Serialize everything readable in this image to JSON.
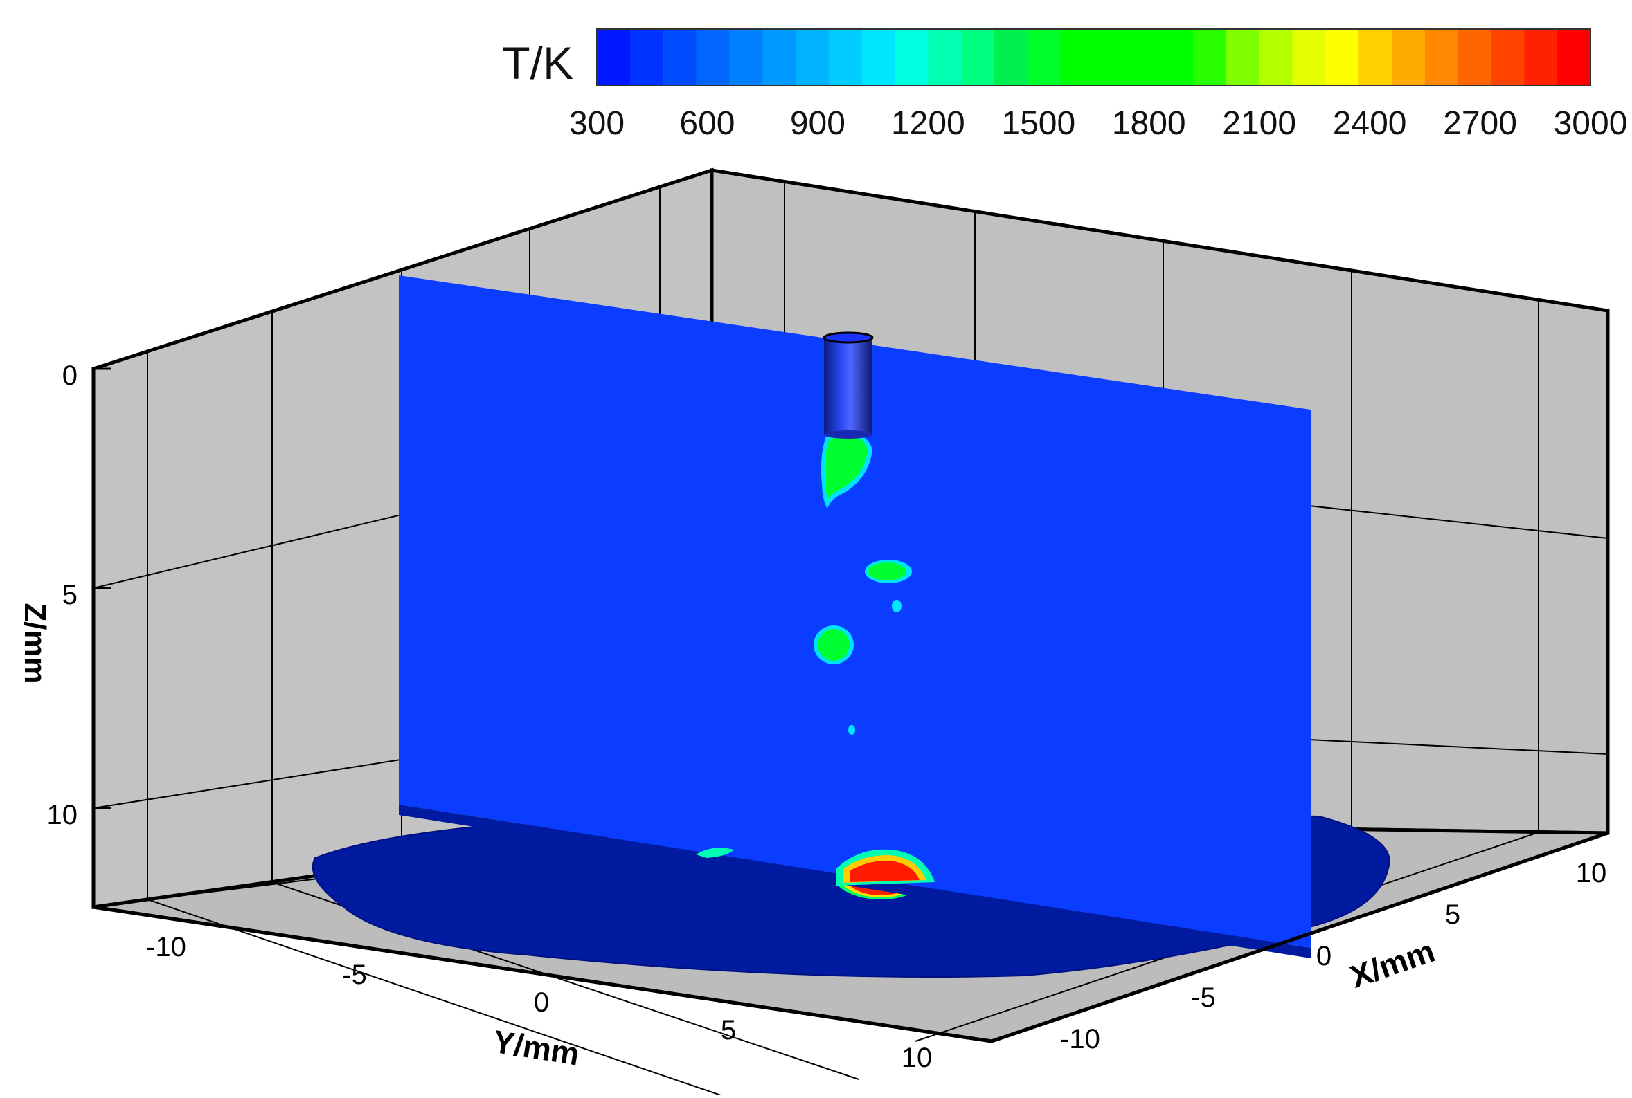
{
  "chart_data": {
    "type": "heatmap",
    "subtype": "3d-contour-slice",
    "title": "",
    "colorbar": {
      "label": "T/K",
      "min": 300,
      "max": 3000,
      "ticks": [
        300,
        600,
        900,
        1200,
        1500,
        1800,
        2100,
        2400,
        2700,
        3000
      ],
      "colors": [
        "#0018ff",
        "#0033ff",
        "#004dff",
        "#0066ff",
        "#0080ff",
        "#0099ff",
        "#00b3ff",
        "#00ccff",
        "#00e6ff",
        "#00ffe0",
        "#00ffb0",
        "#00ff80",
        "#00f050",
        "#00ff2a",
        "#00ff00",
        "#00ff00",
        "#00ff00",
        "#00ff00",
        "#2aff00",
        "#80ff00",
        "#b3ff00",
        "#e6ff00",
        "#ffff00",
        "#ffd000",
        "#ffaa00",
        "#ff8800",
        "#ff6600",
        "#ff4400",
        "#ff2200",
        "#ff0000"
      ]
    },
    "axes": {
      "x": {
        "label": "X/mm",
        "ticks": [
          "-10",
          "-5",
          "0",
          "5",
          "10"
        ],
        "range": [
          -12,
          12
        ]
      },
      "y": {
        "label": "Y/mm",
        "ticks": [
          "-10",
          "-5",
          "0",
          "5",
          "10"
        ],
        "range": [
          -12,
          12
        ]
      },
      "z": {
        "label": "Z/mm",
        "ticks": [
          "0",
          "5",
          "10"
        ],
        "range": [
          0,
          12
        ],
        "reversed": true
      }
    },
    "grid": true,
    "background_temperature_K": 300,
    "hot_regions": [
      {
        "location": "below nozzle exit",
        "peak_K": 1800
      },
      {
        "location": "droplet z≈4.5",
        "peak_K": 1800
      },
      {
        "location": "droplet z≈6",
        "peak_K": 1800
      },
      {
        "location": "impact zone on substrate",
        "peak_K": 3000
      }
    ]
  }
}
